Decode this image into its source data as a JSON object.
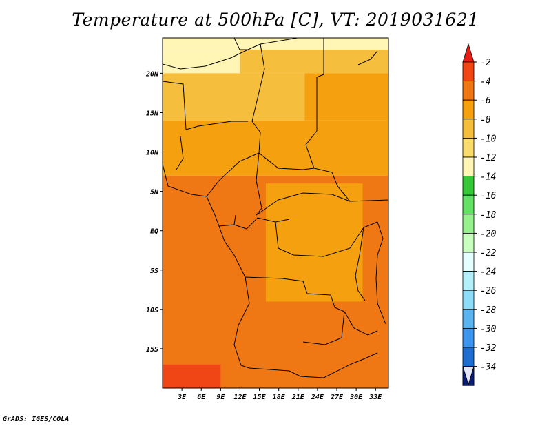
{
  "title": "Temperature at 500hPa [C], VT: 2019031621",
  "credit": "GrADS: IGES/COLA",
  "chart_data": {
    "type": "heatmap",
    "title": "Temperature at 500hPa [C], VT: 2019031621",
    "variable": "Temperature at 500hPa",
    "units": "C",
    "valid_time": "2019031621",
    "lon_range": [
      0,
      35
    ],
    "lat_range": [
      -20,
      24.5
    ],
    "x_ticks": [
      {
        "value": 3,
        "label": "3E"
      },
      {
        "value": 6,
        "label": "6E"
      },
      {
        "value": 9,
        "label": "9E"
      },
      {
        "value": 12,
        "label": "12E"
      },
      {
        "value": 15,
        "label": "15E"
      },
      {
        "value": 18,
        "label": "18E"
      },
      {
        "value": 21,
        "label": "21E"
      },
      {
        "value": 24,
        "label": "24E"
      },
      {
        "value": 27,
        "label": "27E"
      },
      {
        "value": 30,
        "label": "30E"
      },
      {
        "value": 33,
        "label": "33E"
      }
    ],
    "y_ticks": [
      {
        "value": 20,
        "label": "20N"
      },
      {
        "value": 15,
        "label": "15N"
      },
      {
        "value": 10,
        "label": "10N"
      },
      {
        "value": 5,
        "label": "5N"
      },
      {
        "value": 0,
        "label": "EQ"
      },
      {
        "value": -5,
        "label": "5S"
      },
      {
        "value": -10,
        "label": "10S"
      },
      {
        "value": -15,
        "label": "15S"
      }
    ],
    "colorbar": {
      "levels": [
        "-2",
        "-4",
        "-6",
        "-8",
        "-10",
        "-12",
        "-14",
        "-16",
        "-18",
        "-20",
        "-22",
        "-24",
        "-26",
        "-28",
        "-30",
        "-32",
        "-34"
      ],
      "colors": [
        "#f04616",
        "#f07814",
        "#f5a00f",
        "#f5be3c",
        "#fadc6e",
        "#fff5b4",
        "#37c837",
        "#64e164",
        "#96f28c",
        "#c8ffbe",
        "#e6ffff",
        "#b4f0fa",
        "#8cdcfa",
        "#5ab4f0",
        "#3c96f0",
        "#1e6ed2",
        "#1450b4",
        "#0a1e78"
      ],
      "top_color": "#e61e16",
      "bottom_color": "#e6e6fa"
    },
    "regions": [
      {
        "lon_min": 0,
        "lon_max": 35,
        "lat_min": 23,
        "lat_max": 24.5,
        "value": -13
      },
      {
        "lon_min": 0,
        "lon_max": 12,
        "lat_min": 20,
        "lat_max": 23,
        "value": -13
      },
      {
        "lon_min": 12,
        "lon_max": 35,
        "lat_min": 20,
        "lat_max": 23,
        "value": -9
      },
      {
        "lon_min": 0,
        "lon_max": 22,
        "lat_min": 14,
        "lat_max": 20,
        "value": -9
      },
      {
        "lon_min": 22,
        "lon_max": 35,
        "lat_min": 14,
        "lat_max": 20,
        "value": -7
      },
      {
        "lon_min": 0,
        "lon_max": 35,
        "lat_min": 7,
        "lat_max": 14,
        "value": -7
      },
      {
        "lon_min": 0,
        "lon_max": 35,
        "lat_min": -20,
        "lat_max": 7,
        "value": -5
      },
      {
        "lon_min": 16,
        "lon_max": 31,
        "lat_min": -9,
        "lat_max": 6,
        "value": -7
      },
      {
        "lon_min": 0,
        "lon_max": 9,
        "lat_min": -20,
        "lat_max": -17,
        "value": -3
      }
    ]
  }
}
